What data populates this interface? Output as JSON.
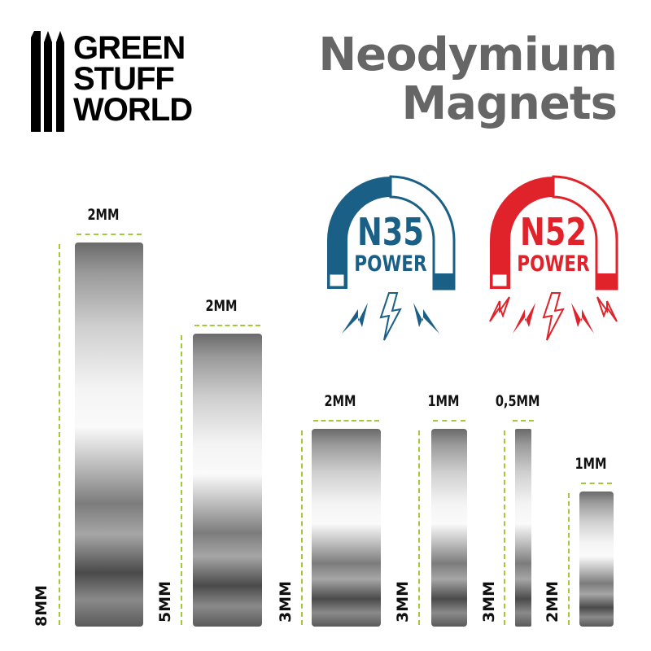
{
  "brand": {
    "logo_lines": [
      "GREEN",
      "STUFF",
      "WORLD"
    ]
  },
  "title": {
    "line1": "Neodymium",
    "line2": "Magnets"
  },
  "badges": [
    {
      "grade": "N35",
      "label": "POWER",
      "color": "#1a5f86"
    },
    {
      "grade": "N52",
      "label": "POWER",
      "color": "#e0232b"
    }
  ],
  "magnets": [
    {
      "thickness": "2MM",
      "diameter": "8MM"
    },
    {
      "thickness": "2MM",
      "diameter": "5MM"
    },
    {
      "thickness": "2MM",
      "diameter": "3MM"
    },
    {
      "thickness": "1MM",
      "diameter": "3MM"
    },
    {
      "thickness": "0,5MM",
      "diameter": "3MM"
    },
    {
      "thickness": "1MM",
      "diameter": "2MM"
    }
  ],
  "colors": {
    "dimension": "#a3c93a",
    "title": "#666666"
  }
}
